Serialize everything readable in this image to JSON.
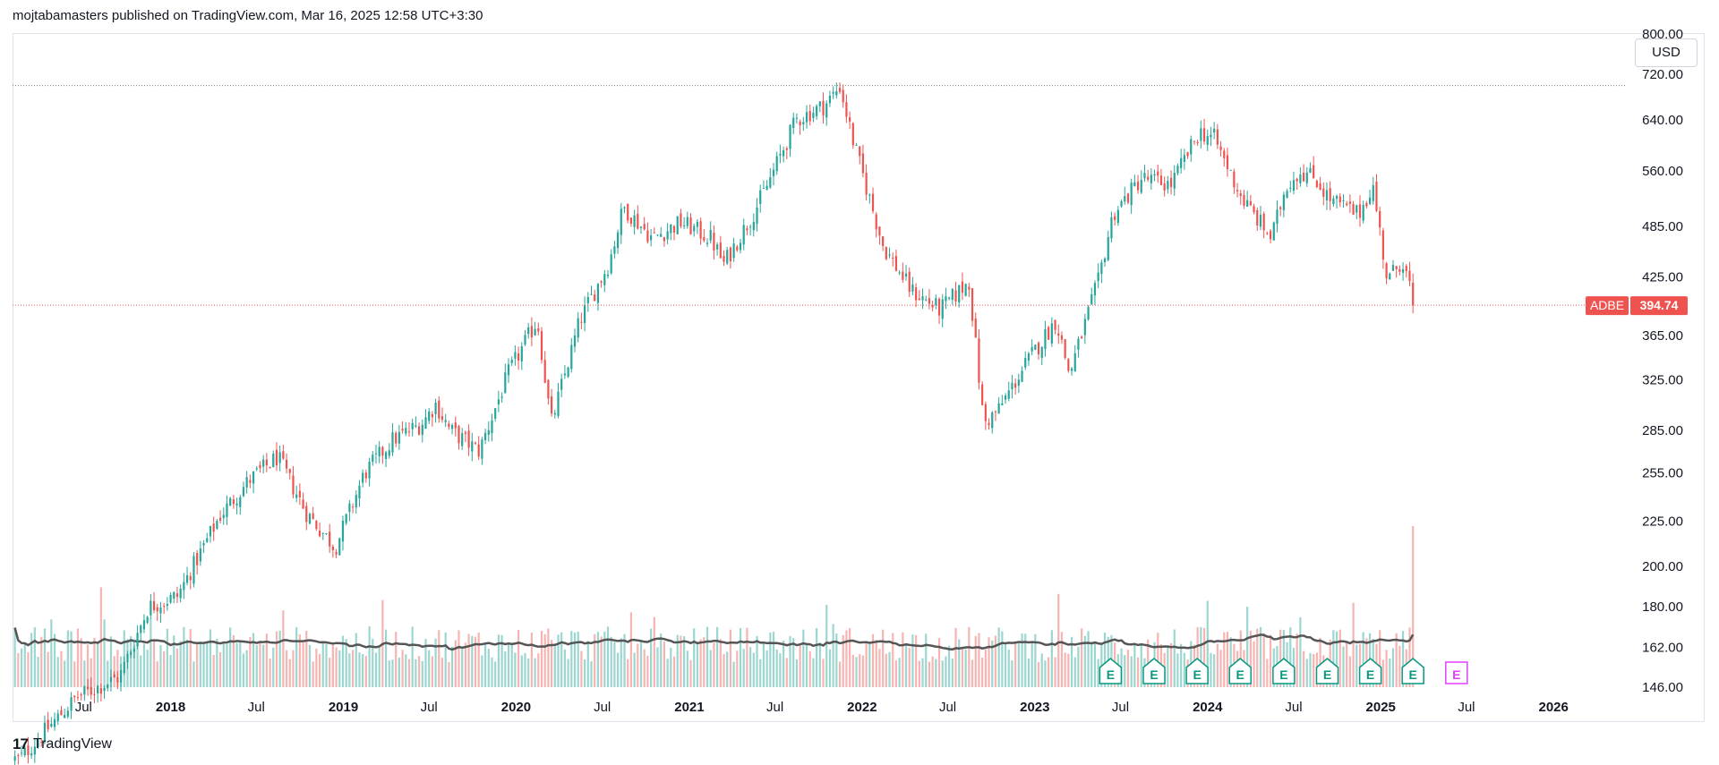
{
  "header": {
    "attribution": "mojtabamasters published on TradingView.com, Mar 16, 2025 12:58 UTC+3:30"
  },
  "currency": "USD",
  "footer": {
    "brand": "TradingView",
    "logo_glyph": "17"
  },
  "symbol": {
    "ticker": "ADBE",
    "last_price": "394.74"
  },
  "colors": {
    "up": "#26a69a",
    "down": "#ef5350",
    "volume_up": "#9cd6d0",
    "volume_down": "#f6b4b2",
    "ma_line": "#555555",
    "price_line": "#ef5350",
    "earnings_past": "#089981",
    "earnings_future": "#e040fb"
  },
  "chart_data": {
    "type": "candlestick",
    "scale": "log",
    "interval": "weekly",
    "ylim": [
      146,
      800
    ],
    "y_ticks": [
      "800.00",
      "720.00",
      "640.00",
      "560.00",
      "485.00",
      "425.00",
      "365.00",
      "325.00",
      "285.00",
      "255.00",
      "225.00",
      "200.00",
      "180.00",
      "162.00",
      "146.00"
    ],
    "x_ticks": [
      "Jul",
      "2018",
      "Jul",
      "2019",
      "Jul",
      "2020",
      "Jul",
      "2021",
      "Jul",
      "2022",
      "Jul",
      "2023",
      "Jul",
      "2024",
      "Jul",
      "2025",
      "Jul",
      "2026"
    ],
    "x_range": [
      "2017-02",
      "2026-06"
    ],
    "price_path": [
      [
        "2017-02",
        121
      ],
      [
        "2017-06",
        142
      ],
      [
        "2017-09",
        150
      ],
      [
        "2017-11",
        180
      ],
      [
        "2018-01",
        185
      ],
      [
        "2018-04",
        228
      ],
      [
        "2018-06",
        250
      ],
      [
        "2018-08",
        266
      ],
      [
        "2018-10",
        230
      ],
      [
        "2018-12",
        210
      ],
      [
        "2019-02",
        255
      ],
      [
        "2019-04",
        278
      ],
      [
        "2019-06",
        290
      ],
      [
        "2019-07",
        305
      ],
      [
        "2019-08",
        285
      ],
      [
        "2019-10",
        270
      ],
      [
        "2019-12",
        330
      ],
      [
        "2020-02",
        380
      ],
      [
        "2020-03",
        290
      ],
      [
        "2020-05",
        380
      ],
      [
        "2020-07",
        440
      ],
      [
        "2020-08",
        510
      ],
      [
        "2020-10",
        470
      ],
      [
        "2020-12",
        490
      ],
      [
        "2021-02",
        470
      ],
      [
        "2021-03",
        440
      ],
      [
        "2021-05",
        500
      ],
      [
        "2021-06",
        540
      ],
      [
        "2021-08",
        640
      ],
      [
        "2021-10",
        665
      ],
      [
        "2021-11",
        698
      ],
      [
        "2021-12",
        600
      ],
      [
        "2022-02",
        460
      ],
      [
        "2022-04",
        410
      ],
      [
        "2022-06",
        390
      ],
      [
        "2022-08",
        420
      ],
      [
        "2022-09",
        290
      ],
      [
        "2022-10",
        300
      ],
      [
        "2022-12",
        340
      ],
      [
        "2023-02",
        380
      ],
      [
        "2023-03",
        330
      ],
      [
        "2023-05",
        420
      ],
      [
        "2023-06",
        500
      ],
      [
        "2023-08",
        550
      ],
      [
        "2023-10",
        540
      ],
      [
        "2023-12",
        620
      ],
      [
        "2024-01",
        610
      ],
      [
        "2024-03",
        520
      ],
      [
        "2024-05",
        470
      ],
      [
        "2024-06",
        540
      ],
      [
        "2024-07",
        560
      ],
      [
        "2024-08",
        550
      ],
      [
        "2024-09",
        520
      ],
      [
        "2024-11",
        500
      ],
      [
        "2024-12",
        540
      ],
      [
        "2025-01",
        420
      ],
      [
        "2025-02",
        445
      ],
      [
        "2025-03",
        394.74
      ]
    ],
    "extremes": {
      "high": [
        "2021-11",
        699.54
      ],
      "low_2022": [
        "2022-10",
        275
      ],
      "covid_low": [
        "2020-03",
        255
      ],
      "last": [
        "2025-03",
        394.74
      ]
    },
    "earnings_markers": {
      "label": "E",
      "past": [
        "2023-06",
        "2023-09",
        "2023-12",
        "2024-03",
        "2024-06",
        "2024-09",
        "2024-12",
        "2025-03"
      ],
      "upcoming": [
        "2025-06"
      ]
    },
    "reference_lines": [
      {
        "price": 699.54,
        "style": "dotted",
        "color": "#808080"
      }
    ]
  }
}
